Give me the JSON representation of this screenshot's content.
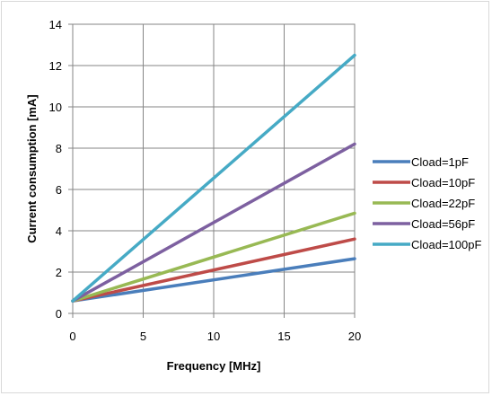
{
  "chart_data": {
    "type": "line",
    "title": "",
    "xlabel": "Frequency [MHz]",
    "ylabel": "Current consumption [mA]",
    "xlim": [
      0,
      20
    ],
    "ylim": [
      0,
      14
    ],
    "xticks": [
      0,
      5,
      10,
      15,
      20
    ],
    "yticks": [
      0,
      2,
      4,
      6,
      8,
      10,
      12,
      14
    ],
    "grid": true,
    "legend_position": "right",
    "x": [
      0,
      20
    ],
    "series": [
      {
        "name": "Cload=1pF",
        "color": "#4a7ebb",
        "values": [
          0.6,
          2.65
        ]
      },
      {
        "name": "Cload=10pF",
        "color": "#be4b48",
        "values": [
          0.6,
          3.6
        ]
      },
      {
        "name": "Cload=22pF",
        "color": "#98b954",
        "values": [
          0.6,
          4.85
        ]
      },
      {
        "name": "Cload=56pF",
        "color": "#7d60a0",
        "values": [
          0.6,
          8.2
        ]
      },
      {
        "name": "Cload=100pF",
        "color": "#46aac5",
        "values": [
          0.6,
          12.5
        ]
      }
    ]
  }
}
